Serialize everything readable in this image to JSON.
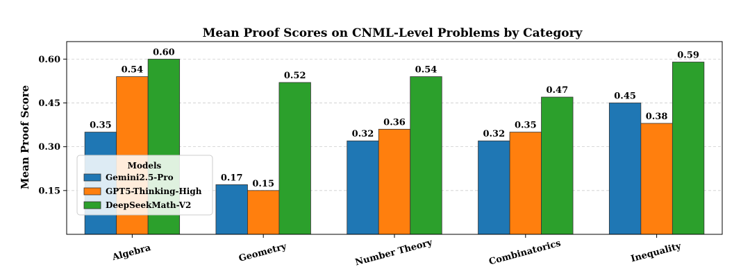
{
  "chart_data": {
    "type": "bar",
    "title": "Mean Proof Scores on CNML-Level Problems by Category",
    "xlabel": "",
    "ylabel": "Mean Proof Score",
    "categories": [
      "Algebra",
      "Geometry",
      "Number Theory",
      "Combinatorics",
      "Inequality"
    ],
    "series": [
      {
        "name": "Gemini2.5-Pro",
        "color": "#1f77b4",
        "values": [
          0.35,
          0.17,
          0.32,
          0.32,
          0.45
        ],
        "labels": [
          "0.35",
          "0.17",
          "0.32",
          "0.32",
          "0.45"
        ]
      },
      {
        "name": "GPT5-Thinking-High",
        "color": "#ff7f0e",
        "values": [
          0.54,
          0.15,
          0.36,
          0.35,
          0.38
        ],
        "labels": [
          "0.54",
          "0.15",
          "0.36",
          "0.35",
          "0.38"
        ]
      },
      {
        "name": "DeepSeekMath-V2",
        "color": "#2ca02c",
        "values": [
          0.6,
          0.52,
          0.54,
          0.47,
          0.59
        ],
        "labels": [
          "0.60",
          "0.52",
          "0.54",
          "0.47",
          "0.59"
        ]
      }
    ],
    "ylim": [
      0,
      0.66
    ],
    "yticks": [
      0.15,
      0.3,
      0.45,
      0.6
    ],
    "ytick_labels": [
      "0.15",
      "0.30",
      "0.45",
      "0.60"
    ],
    "grid": true,
    "legend": {
      "title": "Models",
      "placement": "lower-left"
    }
  }
}
